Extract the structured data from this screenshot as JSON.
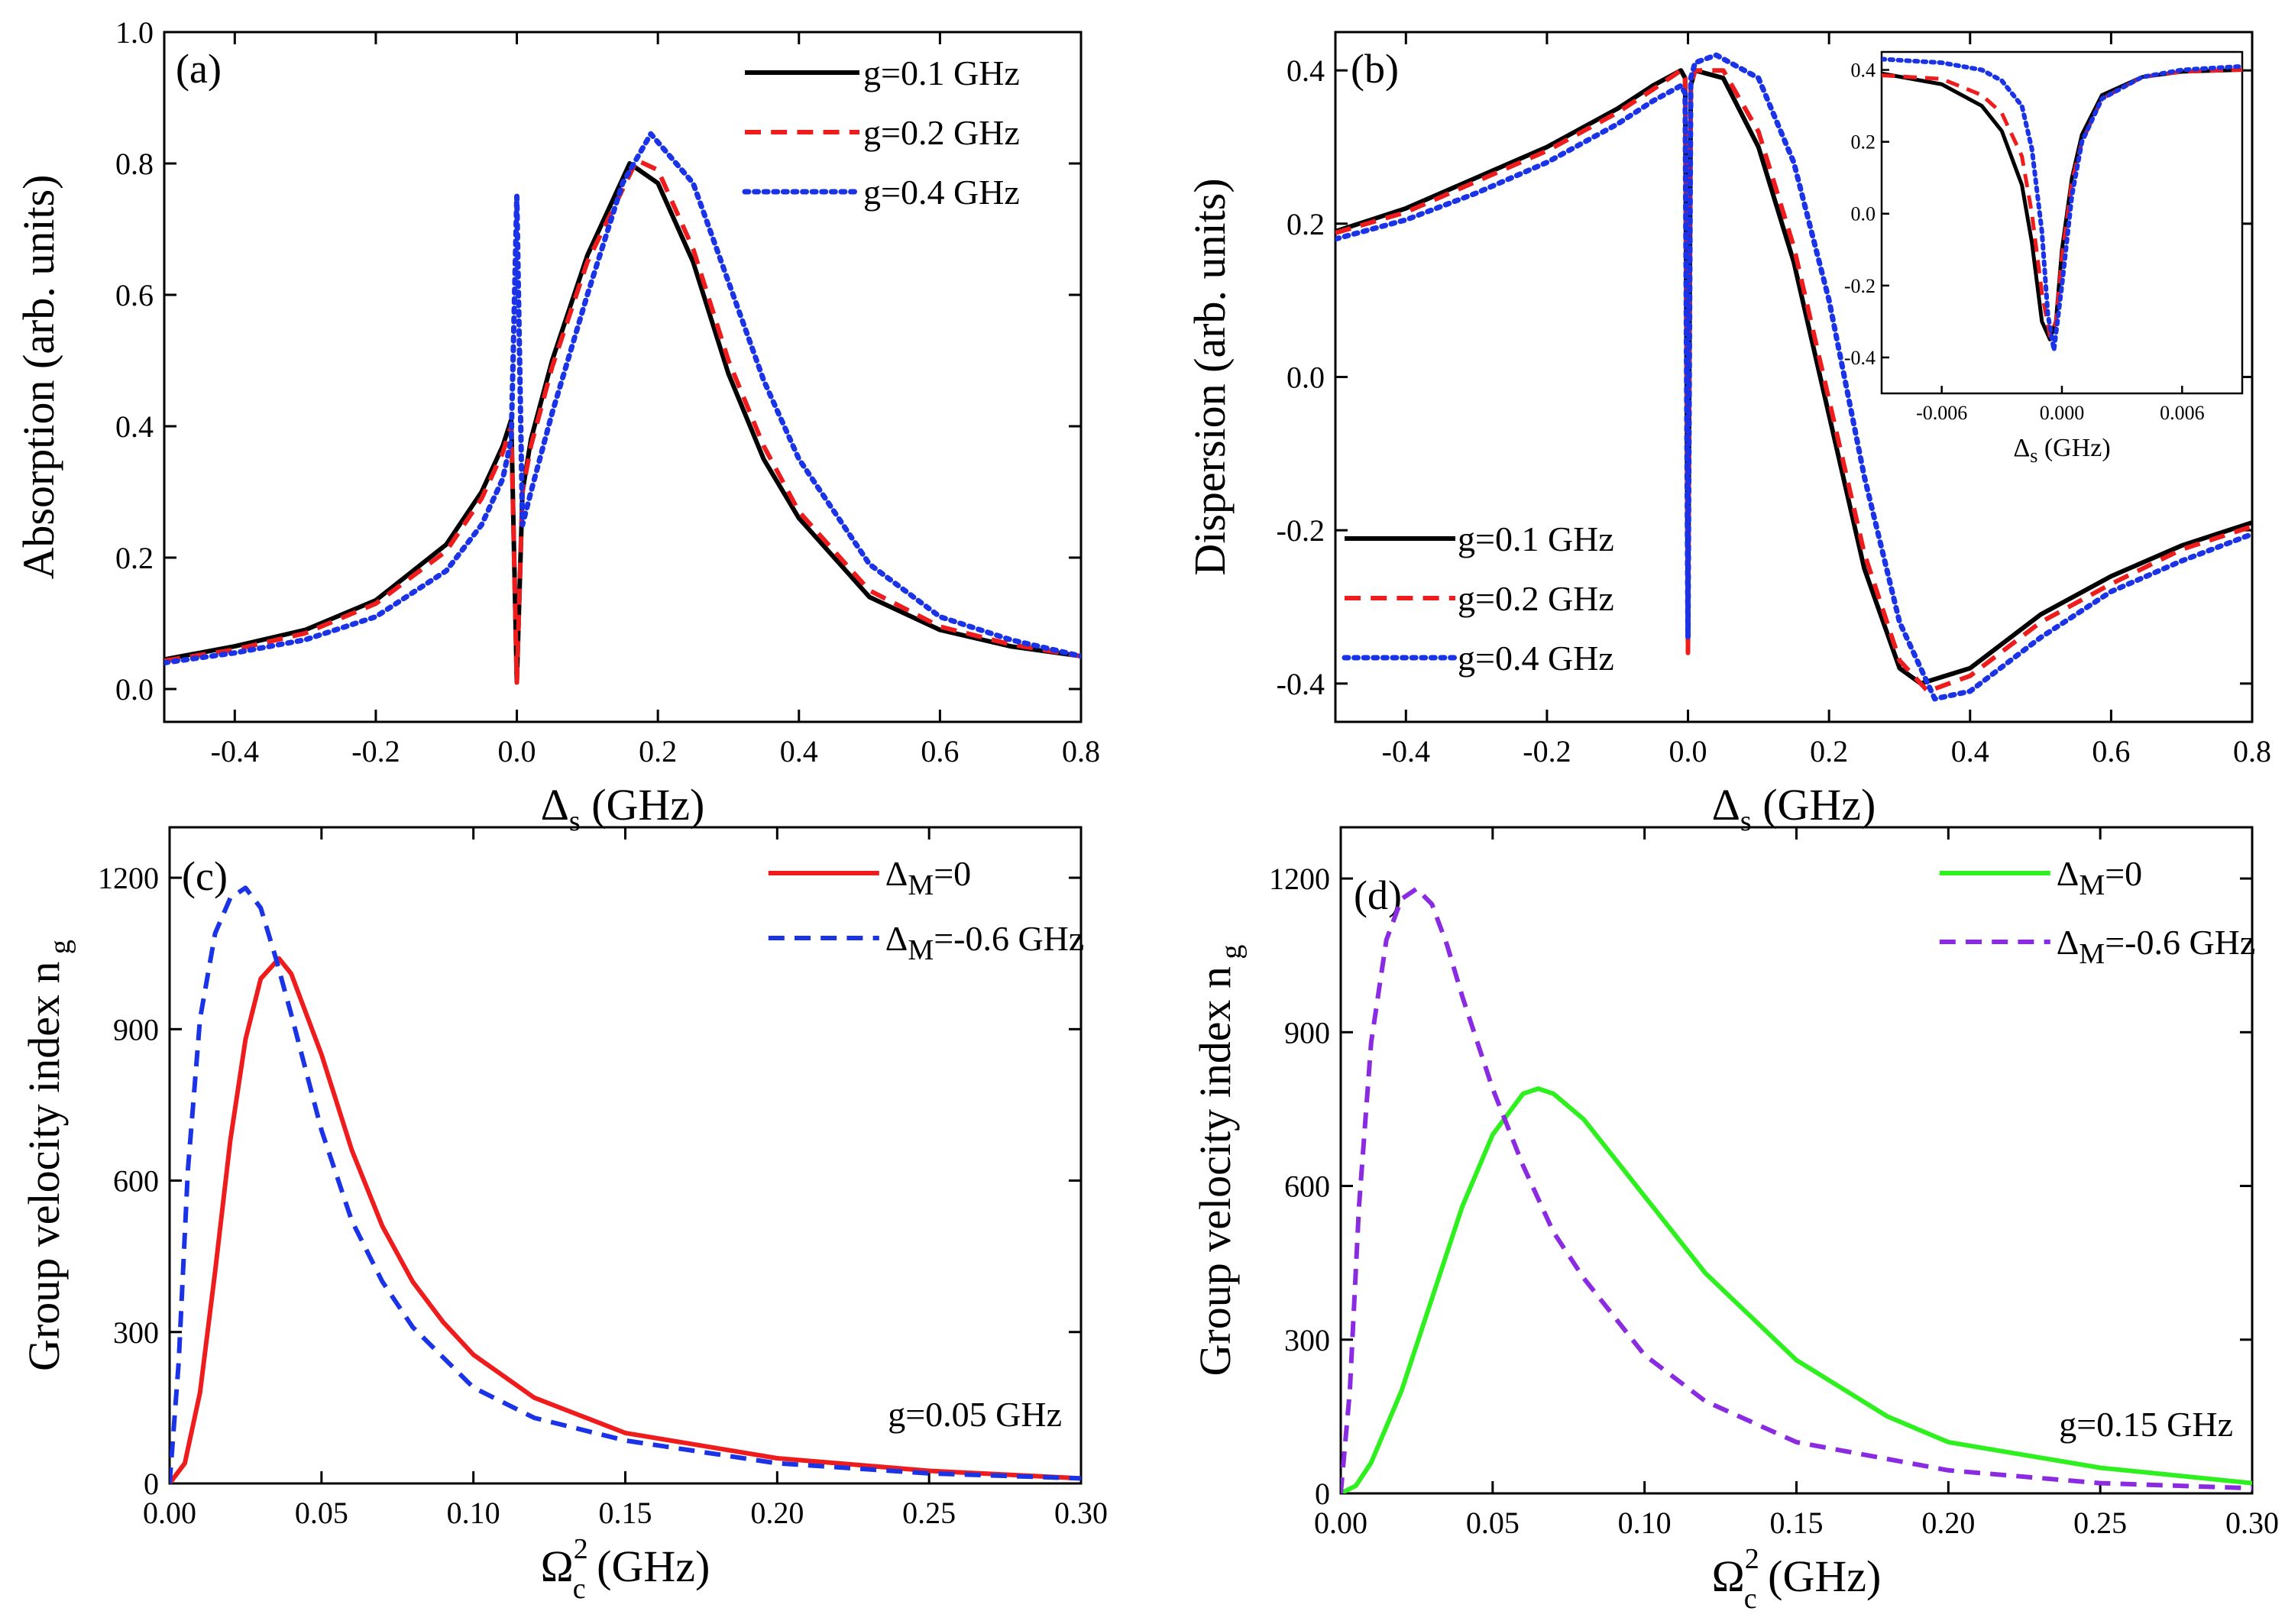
{
  "chart_data": [
    {
      "panel": "(a)",
      "type": "line",
      "xlabel": "Δ",
      "xlabel_sub": "s",
      "xlabel_unit": "(GHz)",
      "ylabel": "Absorption (arb. units)",
      "xlim": [
        -0.5,
        0.8
      ],
      "ylim": [
        -0.05,
        1.0
      ],
      "xticks": [
        "-0.4",
        "-0.2",
        "0.0",
        "0.2",
        "0.4",
        "0.6",
        "0.8"
      ],
      "yticks": [
        "0.0",
        "0.2",
        "0.4",
        "0.6",
        "0.8",
        "1.0"
      ],
      "legend": "top-right",
      "series": [
        {
          "name": "g=0.1 GHz",
          "color": "#000000",
          "style": "solid",
          "x": [
            -0.5,
            -0.4,
            -0.3,
            -0.2,
            -0.1,
            -0.05,
            -0.02,
            -0.008,
            0.0,
            0.008,
            0.02,
            0.05,
            0.1,
            0.16,
            0.2,
            0.25,
            0.3,
            0.35,
            0.4,
            0.5,
            0.6,
            0.7,
            0.8
          ],
          "y": [
            0.045,
            0.065,
            0.09,
            0.135,
            0.22,
            0.3,
            0.37,
            0.41,
            0.01,
            0.3,
            0.38,
            0.5,
            0.66,
            0.8,
            0.77,
            0.65,
            0.48,
            0.35,
            0.26,
            0.14,
            0.09,
            0.065,
            0.05
          ]
        },
        {
          "name": "g=0.2 GHz",
          "color": "#ee1c1c",
          "style": "dashed",
          "x": [
            -0.5,
            -0.4,
            -0.3,
            -0.2,
            -0.1,
            -0.05,
            -0.02,
            -0.008,
            0.0,
            0.008,
            0.02,
            0.05,
            0.1,
            0.17,
            0.2,
            0.25,
            0.3,
            0.35,
            0.4,
            0.5,
            0.6,
            0.7,
            0.8
          ],
          "y": [
            0.043,
            0.06,
            0.085,
            0.13,
            0.21,
            0.29,
            0.36,
            0.4,
            0.01,
            0.3,
            0.37,
            0.49,
            0.65,
            0.805,
            0.79,
            0.67,
            0.5,
            0.37,
            0.27,
            0.15,
            0.095,
            0.068,
            0.05
          ]
        },
        {
          "name": "g=0.4 GHz",
          "color": "#1a33e6",
          "style": "dotted",
          "x": [
            -0.5,
            -0.4,
            -0.3,
            -0.2,
            -0.1,
            -0.05,
            -0.02,
            -0.008,
            0.0,
            0.008,
            0.02,
            0.05,
            0.1,
            0.15,
            0.19,
            0.25,
            0.3,
            0.35,
            0.4,
            0.5,
            0.6,
            0.7,
            0.8
          ],
          "y": [
            0.04,
            0.055,
            0.075,
            0.11,
            0.18,
            0.25,
            0.32,
            0.38,
            0.75,
            0.25,
            0.3,
            0.42,
            0.6,
            0.77,
            0.845,
            0.77,
            0.62,
            0.47,
            0.35,
            0.19,
            0.11,
            0.075,
            0.05
          ]
        }
      ]
    },
    {
      "panel": "(b)",
      "type": "line",
      "xlabel": "Δ",
      "xlabel_sub": "s",
      "xlabel_unit": "(GHz)",
      "ylabel": "Dispersion (arb. units)",
      "xlim": [
        -0.5,
        0.8
      ],
      "ylim": [
        -0.45,
        0.45
      ],
      "xticks": [
        "-0.4",
        "-0.2",
        "0.0",
        "0.2",
        "0.4",
        "0.6",
        "0.8"
      ],
      "yticks": [
        "-0.4",
        "-0.2",
        "0.0",
        "0.2",
        "0.4"
      ],
      "legend": "bottom-left",
      "series": [
        {
          "name": "g=0.1 GHz",
          "color": "#000000",
          "style": "solid",
          "x": [
            -0.5,
            -0.4,
            -0.3,
            -0.2,
            -0.1,
            -0.05,
            -0.01,
            -0.004,
            0.0,
            0.004,
            0.01,
            0.05,
            0.1,
            0.15,
            0.2,
            0.25,
            0.3,
            0.33,
            0.4,
            0.5,
            0.6,
            0.7,
            0.8
          ],
          "y": [
            0.19,
            0.22,
            0.26,
            0.3,
            0.35,
            0.38,
            0.4,
            0.39,
            -0.34,
            0.38,
            0.4,
            0.39,
            0.3,
            0.15,
            -0.05,
            -0.25,
            -0.38,
            -0.4,
            -0.38,
            -0.31,
            -0.26,
            -0.22,
            -0.19
          ]
        },
        {
          "name": "g=0.2 GHz",
          "color": "#ee1c1c",
          "style": "dashed",
          "x": [
            -0.5,
            -0.4,
            -0.3,
            -0.2,
            -0.1,
            -0.05,
            -0.01,
            -0.004,
            0.0,
            0.004,
            0.01,
            0.05,
            0.1,
            0.15,
            0.2,
            0.25,
            0.3,
            0.34,
            0.4,
            0.5,
            0.6,
            0.7,
            0.8
          ],
          "y": [
            0.188,
            0.215,
            0.255,
            0.295,
            0.345,
            0.375,
            0.4,
            0.39,
            -0.36,
            0.38,
            0.4,
            0.4,
            0.32,
            0.17,
            -0.03,
            -0.23,
            -0.37,
            -0.41,
            -0.39,
            -0.32,
            -0.27,
            -0.225,
            -0.195
          ]
        },
        {
          "name": "g=0.4 GHz",
          "color": "#1a33e6",
          "style": "dotted",
          "x": [
            -0.5,
            -0.4,
            -0.3,
            -0.2,
            -0.1,
            -0.05,
            -0.01,
            -0.004,
            0.0,
            0.004,
            0.01,
            0.04,
            0.1,
            0.15,
            0.2,
            0.25,
            0.3,
            0.35,
            0.4,
            0.5,
            0.6,
            0.7,
            0.8
          ],
          "y": [
            0.18,
            0.205,
            0.24,
            0.28,
            0.33,
            0.36,
            0.38,
            0.37,
            -0.34,
            0.39,
            0.41,
            0.42,
            0.39,
            0.28,
            0.1,
            -0.13,
            -0.32,
            -0.42,
            -0.41,
            -0.34,
            -0.28,
            -0.24,
            -0.205
          ]
        }
      ],
      "inset": {
        "xlabel": "Δ",
        "xlabel_sub": "s",
        "xlabel_unit": "(GHz)",
        "xlim": [
          -0.009,
          0.009
        ],
        "ylim": [
          -0.5,
          0.45
        ],
        "xticks": [
          "-0.006",
          "0.000",
          "0.006"
        ],
        "yticks": [
          "0.4",
          "0.2",
          "0.0",
          "-0.2",
          "-0.4"
        ],
        "series": [
          {
            "name": "g=0.1 GHz",
            "color": "#000000",
            "style": "solid",
            "x": [
              -0.009,
              -0.006,
              -0.004,
              -0.003,
              -0.002,
              -0.0015,
              -0.001,
              -0.0006,
              -0.0003,
              0.0,
              0.0005,
              0.001,
              0.002,
              0.004,
              0.006,
              0.009
            ],
            "y": [
              0.39,
              0.36,
              0.3,
              0.23,
              0.08,
              -0.08,
              -0.3,
              -0.35,
              -0.3,
              -0.1,
              0.1,
              0.22,
              0.33,
              0.38,
              0.395,
              0.4
            ]
          },
          {
            "name": "g=0.2 GHz",
            "color": "#ee1c1c",
            "style": "dashed",
            "x": [
              -0.009,
              -0.006,
              -0.004,
              -0.003,
              -0.002,
              -0.0015,
              -0.001,
              -0.0006,
              -0.0003,
              0.0,
              0.0005,
              0.001,
              0.002,
              0.004,
              0.006,
              0.009
            ],
            "y": [
              0.385,
              0.375,
              0.33,
              0.28,
              0.16,
              0.0,
              -0.22,
              -0.34,
              -0.3,
              -0.12,
              0.09,
              0.2,
              0.32,
              0.38,
              0.395,
              0.4
            ]
          },
          {
            "name": "g=0.4 GHz",
            "color": "#1a33e6",
            "style": "dotted",
            "x": [
              -0.009,
              -0.006,
              -0.004,
              -0.003,
              -0.002,
              -0.0015,
              -0.001,
              -0.0007,
              -0.0004,
              0.0,
              0.0005,
              0.001,
              0.002,
              0.004,
              0.006,
              0.009
            ],
            "y": [
              0.43,
              0.42,
              0.4,
              0.37,
              0.3,
              0.18,
              -0.05,
              -0.28,
              -0.38,
              -0.2,
              0.05,
              0.2,
              0.32,
              0.38,
              0.4,
              0.41
            ]
          }
        ]
      }
    },
    {
      "panel": "(c)",
      "type": "line",
      "xlabel": "Ω",
      "xlabel_sup": "2",
      "xlabel_sub": "c",
      "xlabel_unit": "(GHz)",
      "ylabel": "Group velocity index n",
      "ylabel_sub": "g",
      "xlim": [
        0.0,
        0.3
      ],
      "ylim": [
        0,
        1300
      ],
      "xticks": [
        "0.00",
        "0.05",
        "0.10",
        "0.15",
        "0.20",
        "0.25",
        "0.30"
      ],
      "yticks": [
        "0",
        "300",
        "600",
        "900",
        "1200"
      ],
      "annotation": "g=0.05 GHz",
      "legend": "top-right",
      "series": [
        {
          "name": "Δ",
          "name_sub": "M",
          "name_rest": "=0",
          "color": "#ee1c1c",
          "style": "solid",
          "x": [
            0.0,
            0.005,
            0.01,
            0.015,
            0.02,
            0.025,
            0.03,
            0.036,
            0.04,
            0.05,
            0.06,
            0.07,
            0.08,
            0.09,
            0.1,
            0.12,
            0.15,
            0.2,
            0.25,
            0.3
          ],
          "y": [
            0,
            40,
            180,
            420,
            680,
            880,
            1000,
            1040,
            1010,
            850,
            660,
            510,
            400,
            320,
            255,
            170,
            100,
            50,
            25,
            10
          ]
        },
        {
          "name": "Δ",
          "name_sub": "M",
          "name_rest": "=-0.6 GHz",
          "color": "#1a33e6",
          "style": "dashed",
          "x": [
            0.0,
            0.003,
            0.006,
            0.01,
            0.015,
            0.02,
            0.025,
            0.03,
            0.035,
            0.04,
            0.05,
            0.06,
            0.07,
            0.08,
            0.1,
            0.12,
            0.15,
            0.2,
            0.25,
            0.3
          ],
          "y": [
            0,
            240,
            620,
            920,
            1090,
            1160,
            1180,
            1140,
            1040,
            930,
            700,
            520,
            400,
            310,
            190,
            130,
            85,
            40,
            20,
            10
          ]
        }
      ]
    },
    {
      "panel": "(d)",
      "type": "line",
      "xlabel": "Ω",
      "xlabel_sup": "2",
      "xlabel_sub": "c",
      "xlabel_unit": "(GHz)",
      "ylabel": "Group velocity index n",
      "ylabel_sub": "g",
      "xlim": [
        0.0,
        0.3
      ],
      "ylim": [
        0,
        1300
      ],
      "xticks": [
        "0.00",
        "0.05",
        "0.10",
        "0.15",
        "0.20",
        "0.25",
        "0.30"
      ],
      "yticks": [
        "0",
        "300",
        "600",
        "900",
        "1200"
      ],
      "annotation": "g=0.15 GHz",
      "legend": "top-right",
      "series": [
        {
          "name": "Δ",
          "name_sub": "M",
          "name_rest": "=0",
          "color": "#2ef01e",
          "style": "solid",
          "x": [
            0.0,
            0.005,
            0.01,
            0.02,
            0.03,
            0.04,
            0.05,
            0.06,
            0.065,
            0.07,
            0.08,
            0.1,
            0.12,
            0.15,
            0.18,
            0.2,
            0.25,
            0.3
          ],
          "y": [
            0,
            15,
            60,
            200,
            380,
            560,
            700,
            780,
            790,
            780,
            730,
            580,
            430,
            260,
            150,
            100,
            50,
            20
          ]
        },
        {
          "name": "Δ",
          "name_sub": "M",
          "name_rest": "=-0.6 GHz",
          "color": "#8a2be2",
          "style": "dashed",
          "x": [
            0.0,
            0.003,
            0.006,
            0.01,
            0.015,
            0.02,
            0.025,
            0.03,
            0.035,
            0.04,
            0.05,
            0.06,
            0.07,
            0.08,
            0.1,
            0.12,
            0.15,
            0.2,
            0.25,
            0.3
          ],
          "y": [
            0,
            200,
            560,
            880,
            1080,
            1160,
            1180,
            1150,
            1070,
            970,
            790,
            640,
            510,
            420,
            270,
            180,
            100,
            45,
            20,
            10
          ]
        }
      ]
    }
  ]
}
